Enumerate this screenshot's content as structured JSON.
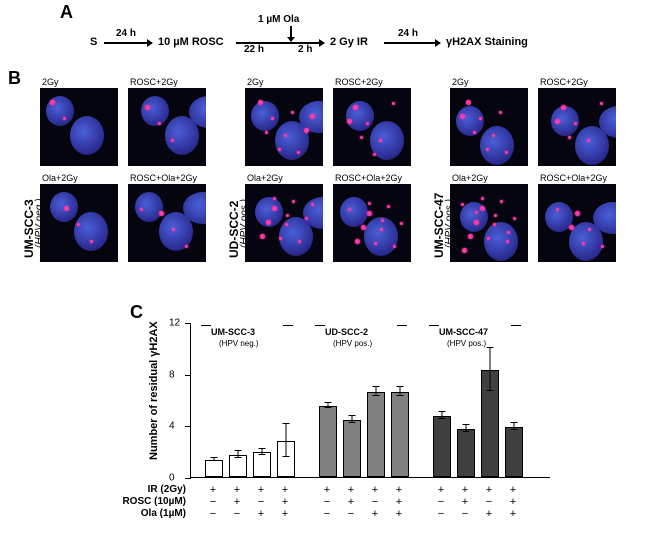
{
  "panelA": {
    "label": "A",
    "start": "S",
    "steps": [
      {
        "duration": "24 h",
        "node": "10 µM ROSC"
      },
      {
        "duration": "22 h",
        "above": "1 µM Ola",
        "split_right": "2 h",
        "node": "2 Gy IR"
      },
      {
        "duration": "24 h",
        "node": "γH2AX Staining"
      }
    ]
  },
  "panelB": {
    "label": "B",
    "groups": [
      {
        "title": "UM-SCC-3",
        "sub": "(HPV neg.)",
        "x": 40
      },
      {
        "title": "UD-SCC-2",
        "sub": "(HPV pos.)",
        "x": 245
      },
      {
        "title": "UM-SCC-47",
        "sub": "(HPV pos.)",
        "x": 450
      }
    ],
    "cells": [
      "2Gy",
      "ROSC+2Gy",
      "Ola+2Gy",
      "ROSC+Ola+2Gy"
    ],
    "foci_density": {
      "UM-SCC-3": {
        "2Gy": 2,
        "ROSC+2Gy": 3,
        "Ola+2Gy": 3,
        "ROSC+Ola+2Gy": 4
      },
      "UD-SCC-2": {
        "2Gy": 9,
        "ROSC+2Gy": 7,
        "Ola+2Gy": 11,
        "ROSC+Ola+2Gy": 11
      },
      "UM-SCC-47": {
        "2Gy": 8,
        "ROSC+2Gy": 6,
        "Ola+2Gy": 14,
        "ROSC+Ola+2Gy": 6
      }
    }
  },
  "panelC": {
    "label": "C",
    "ylabel": "Number of residual  γH2AX",
    "ylim": [
      0,
      12
    ],
    "ytick_step": 4,
    "groups": [
      {
        "name": "UM-SCC-3",
        "sub": "(HPV neg.)",
        "color": "#ffffff"
      },
      {
        "name": "UD-SCC-2",
        "sub": "(HPV pos.)",
        "color": "#808080"
      },
      {
        "name": "UM-SCC-47",
        "sub": "(HPV pos.)",
        "color": "#404040"
      }
    ],
    "values": [
      [
        1.3,
        1.7,
        1.9,
        2.8
      ],
      [
        5.5,
        4.4,
        6.6,
        6.6
      ],
      [
        4.7,
        3.7,
        8.3,
        3.9
      ]
    ],
    "errors": [
      [
        0.15,
        0.3,
        0.3,
        1.3
      ],
      [
        0.25,
        0.3,
        0.4,
        0.4
      ],
      [
        0.3,
        0.3,
        1.7,
        0.3
      ]
    ],
    "conditions": {
      "rows": [
        {
          "label": "IR (2Gy)",
          "pattern": [
            "+",
            "+",
            "+",
            "+"
          ]
        },
        {
          "label": "ROSC (10µM)",
          "pattern": [
            "−",
            "+",
            "−",
            "+"
          ]
        },
        {
          "label": "Ola (1µM)",
          "pattern": [
            "−",
            "−",
            "+",
            "+"
          ]
        }
      ]
    },
    "label_fontsize": 11,
    "tick_fontsize": 10,
    "plot_bg": "#ffffff",
    "axis_color": "#000000"
  }
}
